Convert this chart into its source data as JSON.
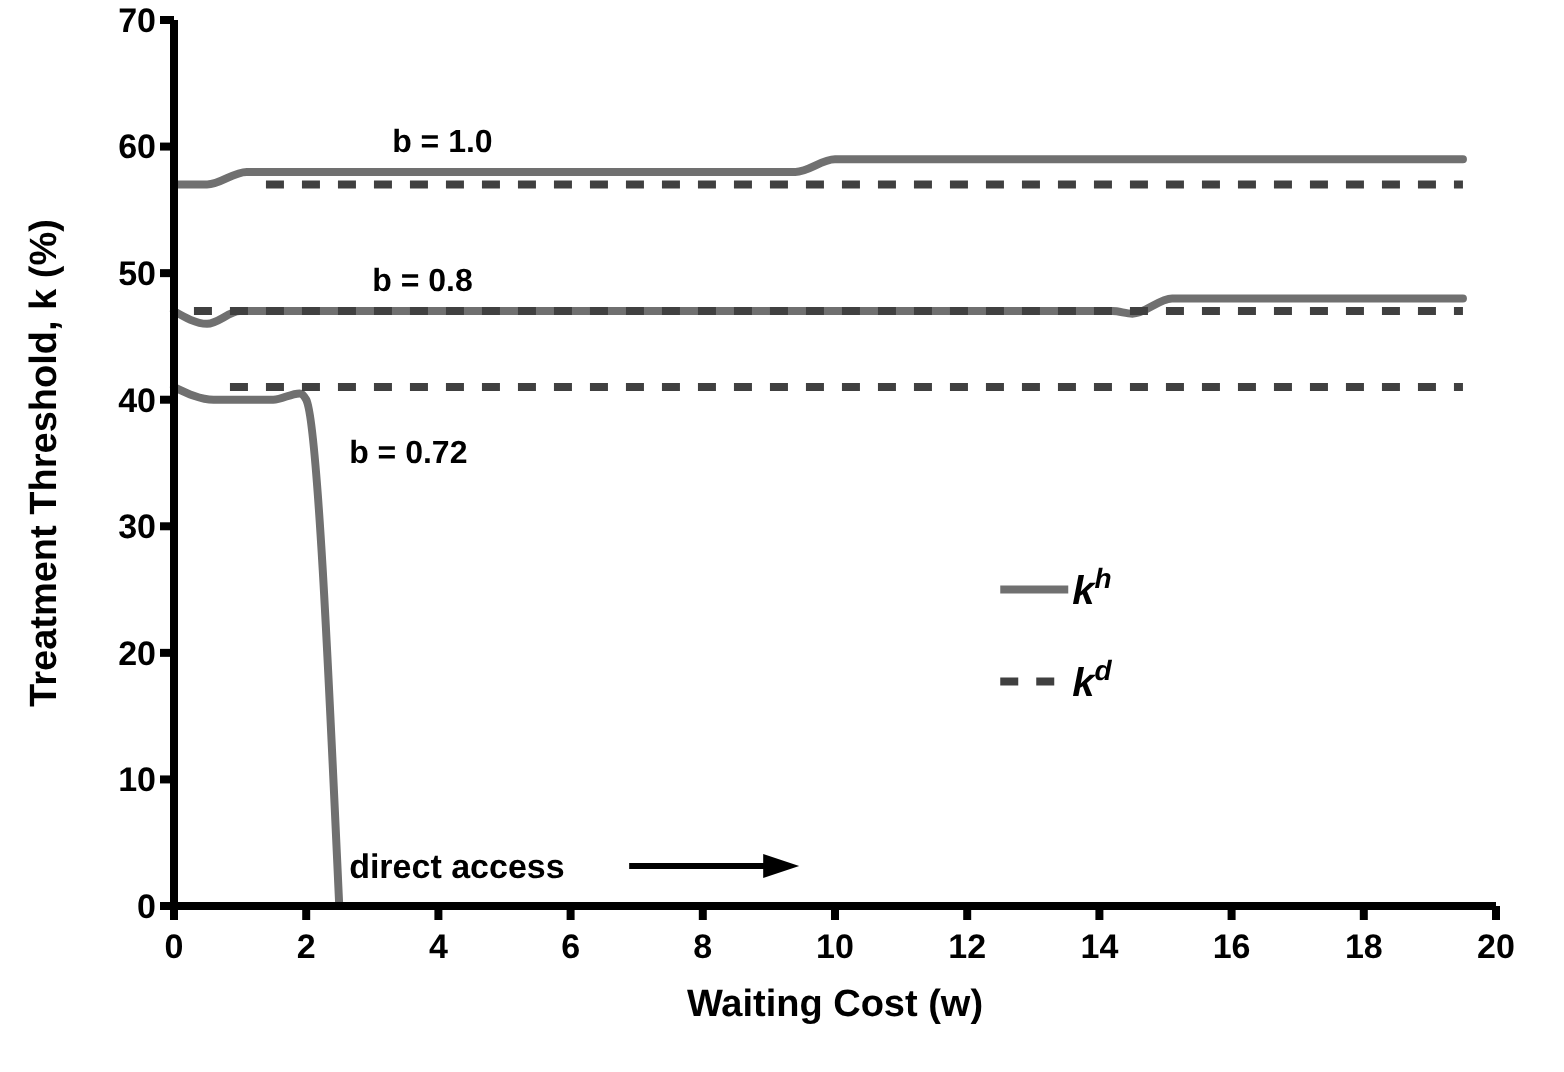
{
  "chart_data": {
    "type": "line",
    "xlabel": "Waiting Cost (w)",
    "ylabel": "Treatment Threshold, k (%)",
    "xlim": [
      0,
      20
    ],
    "xticks": [
      0,
      2,
      4,
      6,
      8,
      10,
      12,
      14,
      16,
      18,
      20
    ],
    "ylim": [
      0,
      70
    ],
    "yticks": [
      0,
      10,
      20,
      30,
      40,
      50,
      60,
      70
    ],
    "grid": false,
    "legend": "right",
    "marker": "none",
    "series": [
      {
        "name": "k$^{h}$",
        "color": "#707070",
        "line_style": "solid",
        "x": [
          0,
          0.5,
          1.1,
          9.4,
          10,
          19.5
        ],
        "values": [
          57,
          57,
          58,
          58,
          59,
          59
        ]
      },
      {
        "color": "#707070",
        "line_style": "solid",
        "x": [
          0,
          0.5,
          1,
          14.2,
          14.5,
          15.1,
          19.5
        ],
        "values": [
          47,
          46,
          47,
          47,
          46.8,
          48,
          48
        ]
      },
      {
        "color": "#707070",
        "line_style": "solid",
        "x": [
          0,
          0.6,
          1.5,
          1.9,
          2,
          2.5
        ],
        "values": [
          41,
          40,
          40,
          40.5,
          40,
          0
        ]
      },
      {
        "name": "k$^{d}$",
        "color": "#404040",
        "line_style": "dashed",
        "x": [
          1.3,
          19.5
        ],
        "values": [
          57,
          57
        ]
      },
      {
        "color": "#404040",
        "line_style": "dashed",
        "x": [
          0,
          19.5
        ],
        "values": [
          47,
          47
        ]
      },
      {
        "color": "#404040",
        "line_style": "dashed",
        "x": [
          0.6,
          19.5
        ],
        "values": [
          41,
          41
        ]
      }
    ],
    "annotations": [
      {
        "text": "b = 1.0",
        "x": 3.3,
        "y": 58
      },
      {
        "text": "b = 0.8",
        "x": 3,
        "y": 47
      },
      "b = 0.72",
      "direct access"
    ]
  }
}
